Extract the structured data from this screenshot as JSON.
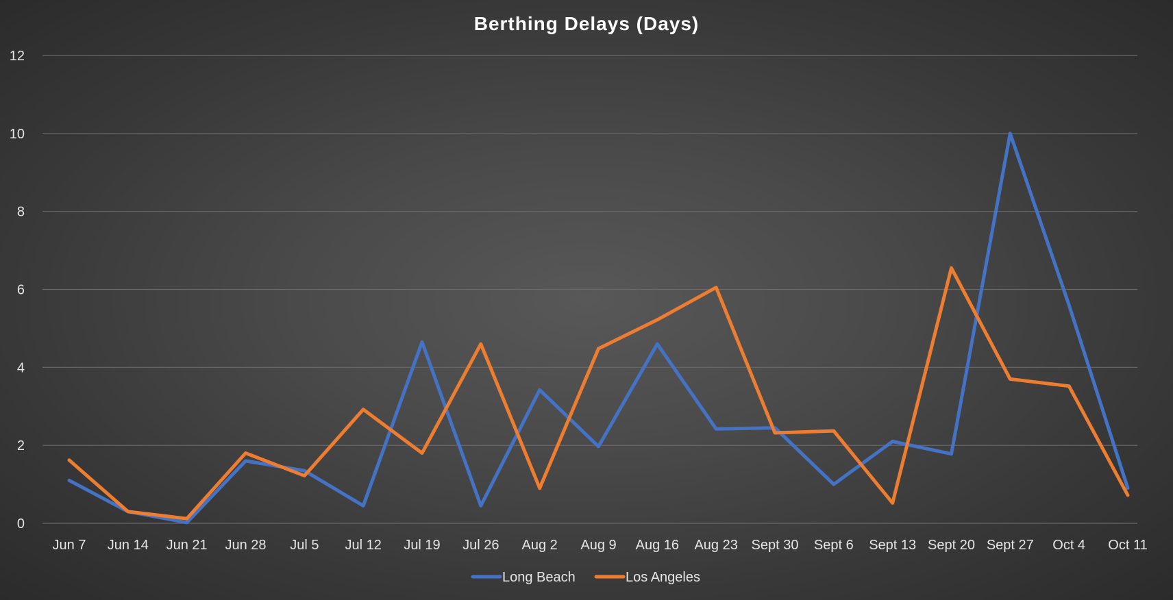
{
  "chart_data": {
    "type": "line",
    "title": "Berthing Delays (Days)",
    "xlabel": "",
    "ylabel": "",
    "categories": [
      "Jun 7",
      "Jun 14",
      "Jun 21",
      "Jun 28",
      "Jul 5",
      "Jul 12",
      "Jul 19",
      "Jul 26",
      "Aug 2",
      "Aug 9",
      "Aug 16",
      "Aug 23",
      "Sept 30",
      "Sept 6",
      "Sept 13",
      "Sept 20",
      "Sept 27",
      "Oct 4",
      "Oct 11"
    ],
    "ylim": [
      0,
      12
    ],
    "yticks": [
      "0",
      "2",
      "4",
      "6",
      "8",
      "10",
      "12"
    ],
    "grid": true,
    "legend_position": "bottom",
    "series": [
      {
        "name": "Long Beach",
        "color": "#4472c4",
        "values": [
          1.1,
          0.3,
          0.02,
          1.6,
          1.35,
          0.45,
          4.65,
          0.45,
          3.42,
          1.97,
          4.6,
          2.42,
          2.45,
          1.0,
          2.1,
          1.78,
          10.0,
          5.6,
          0.9
        ]
      },
      {
        "name": "Los Angeles",
        "color": "#ed7d31",
        "values": [
          1.62,
          0.3,
          0.12,
          1.8,
          1.22,
          2.92,
          1.8,
          4.6,
          0.9,
          4.48,
          5.22,
          6.05,
          2.32,
          2.37,
          0.52,
          6.55,
          3.7,
          3.52,
          0.72
        ]
      }
    ]
  }
}
